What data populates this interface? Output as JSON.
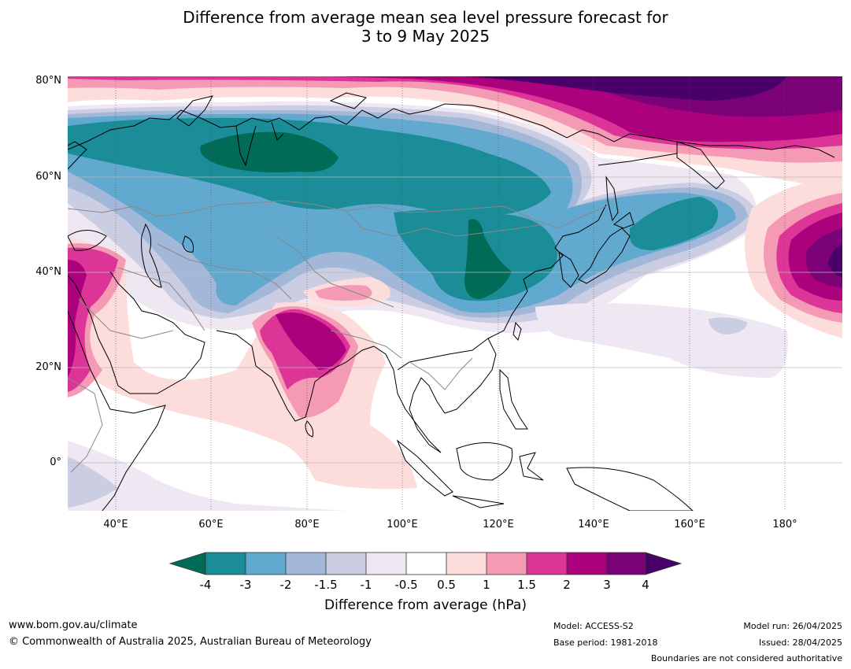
{
  "title": {
    "line1": "Difference from average mean sea level pressure forecast for",
    "line2": "3 to 9 May 2025"
  },
  "map": {
    "lat_labels": [
      "80°N",
      "60°N",
      "40°N",
      "20°N",
      "0°"
    ],
    "lon_labels": [
      "40°E",
      "60°E",
      "80°E",
      "100°E",
      "120°E",
      "140°E",
      "160°E",
      "180°"
    ],
    "extent": {
      "lon": [
        30,
        191
      ],
      "lat": [
        -10,
        81
      ]
    }
  },
  "colorbar": {
    "title": "Difference from average (hPa)",
    "labels": [
      "-4",
      "-3",
      "-2",
      "-1.5",
      "-1",
      "-0.5",
      "0.5",
      "1",
      "1.5",
      "2",
      "3",
      "4"
    ],
    "colors": {
      "lt_-4": "#006b56",
      "-4_-3": "#1b8d98",
      "-3_-2": "#62a9d0",
      "-2_-1.5": "#a3b8d8",
      "-1.5_-1": "#cbcde3",
      "-1_-0.5": "#efe8f3",
      "-0.5_0.5": "#ffffff",
      "0.5_1": "#fddcdc",
      "1_1.5": "#f59ab5",
      "1.5_2": "#dd3498",
      "2_3": "#ac017d",
      "3_4": "#7a0176",
      "gt_4": "#49006a"
    }
  },
  "footer": {
    "url": "www.bom.gov.au/climate",
    "copyright": "© Commonwealth of Australia 2025, Australian Bureau of Meteorology",
    "model": "Model: ACCESS-S2",
    "base_period": "Base period: 1981-2018",
    "model_run": "Model run: 26/04/2025",
    "issued": "Issued: 28/04/2025",
    "disclaimer": "Boundaries are not considered authoritative"
  }
}
